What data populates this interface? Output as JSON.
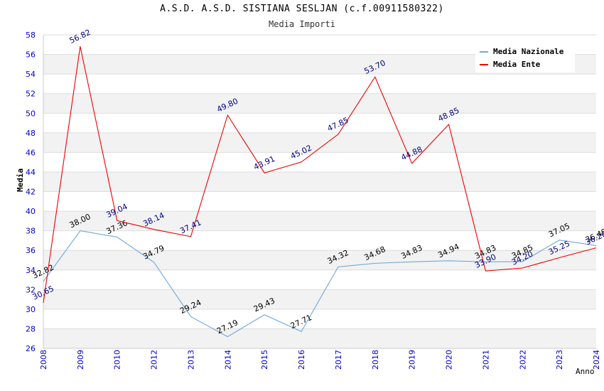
{
  "header": {
    "title": "A.S.D. A.S.D. SISTIANA SESLJAN (c.f.00911580322)",
    "subtitle": "Media Importi"
  },
  "chart_data": {
    "type": "line",
    "title": "A.S.D. A.S.D. SISTIANA SESLJAN (c.f.00911580322)",
    "subtitle": "Media Importi",
    "xlabel": "Anno",
    "ylabel": "Media",
    "ylim": [
      26,
      58
    ],
    "yticks": [
      "26",
      "28",
      "30",
      "32",
      "34",
      "36",
      "38",
      "40",
      "42",
      "44",
      "46",
      "48",
      "50",
      "52",
      "54",
      "56",
      "58"
    ],
    "categories": [
      "2008",
      "2009",
      "2010",
      "2012",
      "2013",
      "2014",
      "2015",
      "2016",
      "2017",
      "2018",
      "2019",
      "2020",
      "2021",
      "2022",
      "2023",
      "2024"
    ],
    "legend_position": "top-right",
    "series": [
      {
        "name": "Media Nazionale",
        "color": "#6fa8dc",
        "label_color": "#000000",
        "values": [
          32.82,
          38.0,
          37.36,
          34.79,
          29.24,
          27.19,
          29.43,
          27.71,
          34.32,
          34.68,
          34.83,
          34.94,
          34.83,
          34.85,
          37.05,
          36.49
        ],
        "labels": [
          "32.82",
          "38.00",
          "37.36",
          "34.79",
          "29.24",
          "27.19",
          "29.43",
          "27.71",
          "34.32",
          "34.68",
          "34.83",
          "34.94",
          "34.83",
          "34.85",
          "37.05",
          "36.49"
        ]
      },
      {
        "name": "Media Ente",
        "color": "#ee0000",
        "label_color": "#000080",
        "values": [
          30.65,
          56.82,
          39.04,
          38.14,
          37.41,
          49.8,
          43.91,
          45.02,
          47.85,
          53.7,
          44.88,
          48.85,
          33.9,
          34.2,
          35.25,
          36.26
        ],
        "labels": [
          "30.65",
          "56.82",
          "39.04",
          "38.14",
          "37.41",
          "49.80",
          "43.91",
          "45.02",
          "47.85",
          "53.70",
          "44.88",
          "48.85",
          "33.90",
          "34.20",
          "35.25",
          "36.26"
        ]
      }
    ]
  }
}
